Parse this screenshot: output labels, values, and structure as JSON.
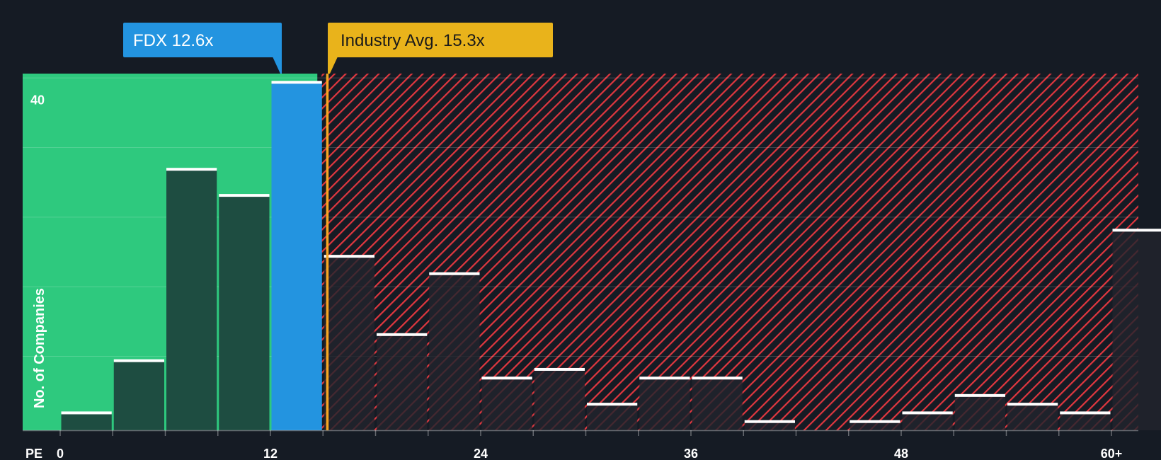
{
  "chart_data": {
    "type": "bar",
    "title": "",
    "xlabel": "PE",
    "ylabel": "No. of Companies",
    "xlim": [
      0,
      61.5
    ],
    "ylim": [
      0,
      41
    ],
    "bin_width": 3,
    "bins": [
      {
        "start": 0,
        "count": 2
      },
      {
        "start": 3,
        "count": 8
      },
      {
        "start": 6,
        "count": 30
      },
      {
        "start": 9,
        "count": 27
      },
      {
        "start": 12,
        "count": 40
      },
      {
        "start": 15,
        "count": 20
      },
      {
        "start": 18,
        "count": 11
      },
      {
        "start": 21,
        "count": 18
      },
      {
        "start": 24,
        "count": 6
      },
      {
        "start": 27,
        "count": 7
      },
      {
        "start": 30,
        "count": 3
      },
      {
        "start": 33,
        "count": 6
      },
      {
        "start": 36,
        "count": 6
      },
      {
        "start": 39,
        "count": 1
      },
      {
        "start": 42,
        "count": 0
      },
      {
        "start": 45,
        "count": 1
      },
      {
        "start": 48,
        "count": 2
      },
      {
        "start": 51,
        "count": 4
      },
      {
        "start": 54,
        "count": 3
      },
      {
        "start": 57,
        "count": 2
      },
      {
        "start": 60,
        "count": 23
      }
    ],
    "x_ticks": [
      {
        "value": 0,
        "label": "0"
      },
      {
        "value": 12,
        "label": "12"
      },
      {
        "value": 24,
        "label": "24"
      },
      {
        "value": 36,
        "label": "36"
      },
      {
        "value": 48,
        "label": "48"
      },
      {
        "value": 60,
        "label": "60+"
      }
    ],
    "y_ticks": [
      {
        "value": 40,
        "label": "40"
      }
    ],
    "company": {
      "label": "FDX 12.6x",
      "value": 12.6
    },
    "industry": {
      "label": "Industry Avg. 15.3x",
      "value": 15.3
    },
    "colors": {
      "background": "#151b24",
      "fair_region": "#2ec97e",
      "fair_bar": "#1e4d41",
      "company_bar": "#2394e0",
      "over_region_stripe": "#e0373f",
      "over_bar": "#22252d",
      "industry_line": "#f5a623",
      "company_callout": "#2394e0",
      "industry_callout": "#e9b31b",
      "bar_cap": "#ffffff"
    }
  }
}
